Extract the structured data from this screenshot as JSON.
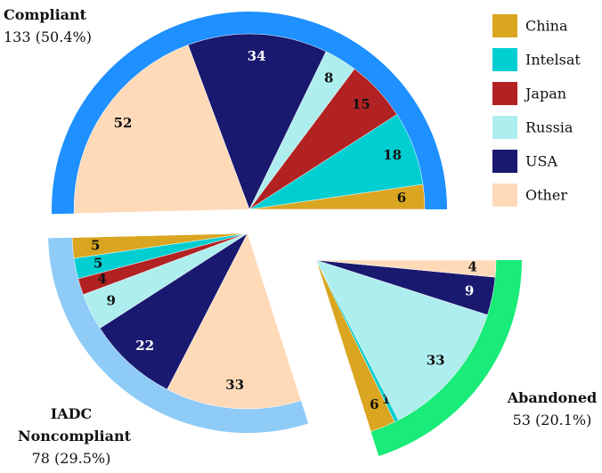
{
  "chart_data": {
    "type": "pie",
    "categories": [
      "China",
      "Intelsat",
      "Japan",
      "Russia",
      "USA",
      "Other"
    ],
    "colors": [
      "#daa520",
      "#00ced1",
      "#b22222",
      "#afeeee",
      "#191970",
      "#ffdab9"
    ],
    "groups": [
      {
        "name": "Compliant",
        "value": 133,
        "value_label": "133 (50.4%)",
        "color": "#1e90ff",
        "values": [
          6,
          18,
          15,
          8,
          34,
          52
        ]
      },
      {
        "name": "IADC Noncompliant",
        "value": 78,
        "value_label": "78 (29.5%)",
        "color": "#8ecbf7",
        "values": [
          5,
          5,
          4,
          9,
          22,
          33
        ]
      },
      {
        "name": "Abandoned",
        "value": 53,
        "value_label": "53 (20.1%)",
        "color": "#19ec78",
        "values": [
          6,
          1,
          0,
          33,
          9,
          4
        ]
      }
    ]
  }
}
